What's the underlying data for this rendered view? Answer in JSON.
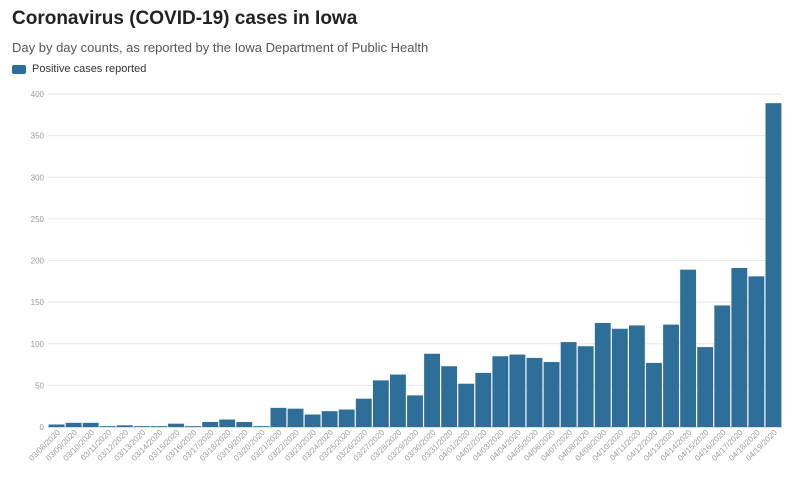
{
  "title": "Coronavirus (COVID-19) cases in Iowa",
  "subtitle": "Day by day counts, as reported by the Iowa Department of Public Health",
  "legend": {
    "label": "Positive cases reported"
  },
  "colors": {
    "bar": "#2e6f9a",
    "grid": "#e6e6e6",
    "axis": "#bbbbbb"
  },
  "chart_data": {
    "type": "bar",
    "title": "Coronavirus (COVID-19) cases in Iowa",
    "subtitle": "Day by day counts, as reported by the Iowa Department of Public Health",
    "xlabel": "",
    "ylabel": "",
    "ylim": [
      0,
      400
    ],
    "yticks": [
      0,
      50,
      100,
      150,
      200,
      250,
      300,
      350,
      400
    ],
    "grid": true,
    "legend_position": "top-left",
    "categories": [
      "03/08/2020",
      "03/09/2020",
      "03/10/2020",
      "03/11/2020",
      "03/12/2020",
      "03/13/2020",
      "03/14/2020",
      "03/15/2020",
      "03/16/2020",
      "03/17/2020",
      "03/18/2020",
      "03/19/2020",
      "03/20/2020",
      "03/21/2020",
      "03/22/2020",
      "03/23/2020",
      "03/24/2020",
      "03/25/2020",
      "03/26/2020",
      "03/27/2020",
      "03/28/2020",
      "03/29/2020",
      "03/30/2020",
      "03/31/2020",
      "04/01/2020",
      "04/02/2020",
      "04/03/2020",
      "04/04/2020",
      "04/05/2020",
      "04/06/2020",
      "04/07/2020",
      "04/08/2020",
      "04/09/2020",
      "04/10/2020",
      "04/11/2020",
      "04/12/2020",
      "04/13/2020",
      "04/14/2020",
      "04/15/2020",
      "04/16/2020",
      "04/17/2020",
      "04/18/2020",
      "04/19/2020"
    ],
    "series": [
      {
        "name": "Positive cases reported",
        "values": [
          3,
          5,
          5,
          1,
          2,
          1,
          1,
          4,
          1,
          6,
          9,
          6,
          1,
          23,
          22,
          15,
          19,
          21,
          34,
          56,
          63,
          38,
          88,
          73,
          52,
          65,
          85,
          87,
          83,
          78,
          102,
          97,
          125,
          118,
          122,
          77,
          123,
          189,
          96,
          146,
          191,
          181,
          389
        ]
      }
    ]
  }
}
